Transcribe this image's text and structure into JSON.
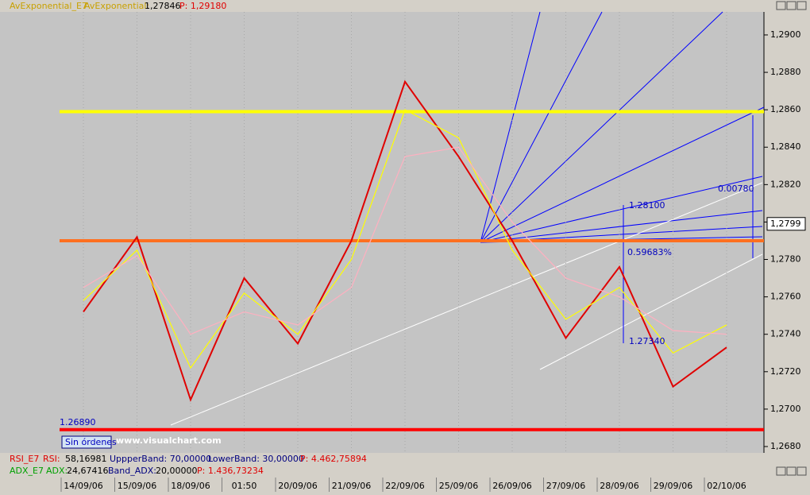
{
  "chart_data": {
    "type": "line",
    "header": {
      "indicator": "AvExponential_E7",
      "label": "AvExponential:",
      "value": "1,27846",
      "price": "P: 1,29180"
    },
    "rsi_row": {
      "indicator": "RSI_E7",
      "label": "RSI:",
      "value": "58,16981",
      "upper": "UppperBand: 70,00000",
      "lower": "LowerBand: 30,00000",
      "price": "P: 4.462,75894"
    },
    "adx_row": {
      "indicator": "ADX_E7",
      "label": "ADX:",
      "value": "24,67416",
      "band": "Band_ADX:",
      "band_value": "20,00000",
      "price": "P: 1.436,73234"
    },
    "categories": [
      "14/09/06",
      "15/09/06",
      "18/09/06",
      "01:50",
      "20/09/06",
      "21/09/06",
      "22/09/06",
      "25/09/06",
      "26/09/06",
      "27/09/06",
      "28/09/06",
      "29/09/06",
      "02/10/06"
    ],
    "series": [
      {
        "color": "#e00000",
        "values": [
          1.2752,
          1.2792,
          1.2705,
          1.277,
          1.2735,
          1.279,
          1.2875,
          1.2835,
          1.279,
          1.2738,
          1.2776,
          1.2712,
          1.2733
        ]
      },
      {
        "color": "#ffff00",
        "values": [
          1.2758,
          1.2785,
          1.2722,
          1.2762,
          1.274,
          1.278,
          1.286,
          1.2845,
          1.2785,
          1.2748,
          1.2765,
          1.273,
          1.2745
        ]
      },
      {
        "color": "#ffb0c0",
        "values": [
          1.2765,
          1.2782,
          1.274,
          1.2752,
          1.2745,
          1.2765,
          1.2835,
          1.284,
          1.28,
          1.277,
          1.276,
          1.2742,
          1.274
        ]
      }
    ],
    "levels": [
      {
        "value": 1.2859,
        "color": "#ffff00"
      },
      {
        "value": 1.279,
        "color": "#ff7020"
      },
      {
        "value": 1.2689,
        "color": "#ff0000"
      }
    ],
    "last_price": {
      "value": 1.2799,
      "label": "1,2799"
    },
    "annotations": [
      "1.26890",
      "1.28100",
      "0.59683%",
      "1.27340",
      "0.00780",
      "Sin órdenes",
      "www.visualchart.com"
    ],
    "ylim": [
      1.26766,
      1.29123
    ],
    "yticks": [
      {
        "value": 1.268,
        "label": "1,2680"
      },
      {
        "value": 1.27,
        "label": "1,2700"
      },
      {
        "value": 1.272,
        "label": "1,2720"
      },
      {
        "value": 1.274,
        "label": "1,2740"
      },
      {
        "value": 1.276,
        "label": "1,2760"
      },
      {
        "value": 1.278,
        "label": "1,2780"
      },
      {
        "value": 1.28,
        "label": "1,2800"
      },
      {
        "value": 1.282,
        "label": "1,2820"
      },
      {
        "value": 1.284,
        "label": "1,2840"
      },
      {
        "value": 1.286,
        "label": "1,2860"
      },
      {
        "value": 1.288,
        "label": "1,2880"
      },
      {
        "value": 1.29,
        "label": "1,2900"
      }
    ]
  }
}
